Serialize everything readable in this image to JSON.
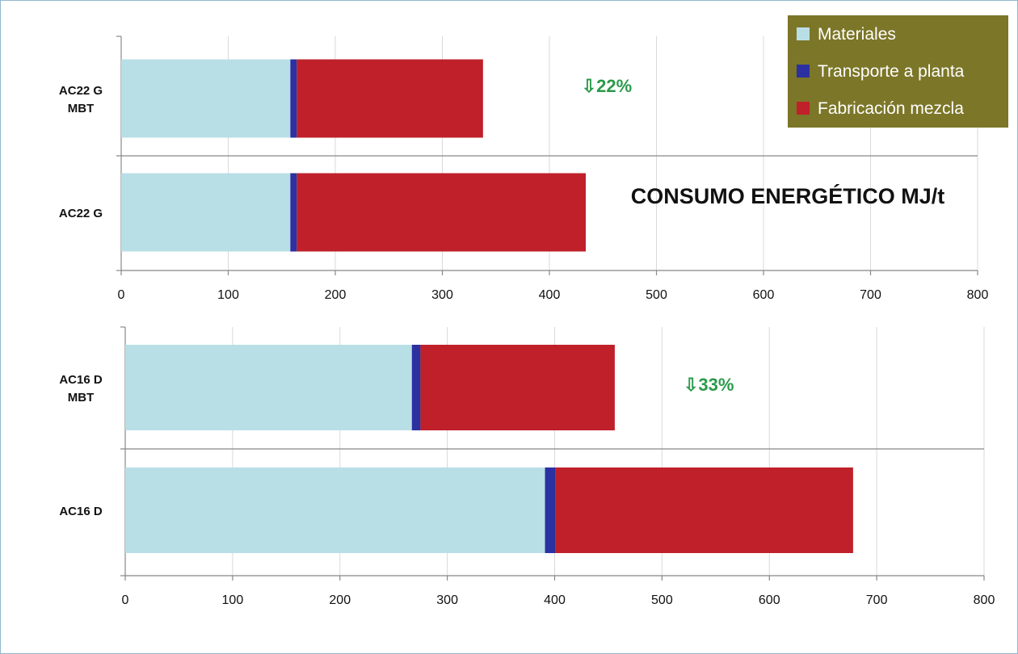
{
  "chart_data": [
    {
      "type": "bar",
      "orientation": "horizontal",
      "stacked": true,
      "categories": [
        "AC22 G MBT",
        "AC22 G"
      ],
      "category_lines": [
        [
          "AC22 G",
          "MBT"
        ],
        [
          "AC22 G"
        ]
      ],
      "series": [
        {
          "name": "Materiales",
          "values": [
            158,
            158
          ],
          "color": "#b9dfe6"
        },
        {
          "name": "Transporte a planta",
          "values": [
            6,
            6
          ],
          "color": "#2b31a0"
        },
        {
          "name": "Fabricación mezcla",
          "values": [
            174,
            270
          ],
          "color": "#c0202a"
        }
      ],
      "xlim": [
        0,
        800
      ],
      "xticks": [
        0,
        100,
        200,
        300,
        400,
        500,
        600,
        700,
        800
      ],
      "grid": "vertical",
      "title": "CONSUMO ENERGÉTICO MJ/t",
      "annotation": {
        "text": "⇩22%",
        "x": 430,
        "category": 0,
        "color": "#2c9a4b"
      }
    },
    {
      "type": "bar",
      "orientation": "horizontal",
      "stacked": true,
      "categories": [
        "AC16 D MBT",
        "AC16 D"
      ],
      "category_lines": [
        [
          "AC16 D",
          "MBT"
        ],
        [
          "AC16 D"
        ]
      ],
      "series": [
        {
          "name": "Materiales",
          "values": [
            267,
            391
          ],
          "color": "#b9dfe6"
        },
        {
          "name": "Transporte a planta",
          "values": [
            8,
            10
          ],
          "color": "#2b31a0"
        },
        {
          "name": "Fabricación mezcla",
          "values": [
            181,
            277
          ],
          "color": "#c0202a"
        }
      ],
      "xlim": [
        0,
        800
      ],
      "xticks": [
        0,
        100,
        200,
        300,
        400,
        500,
        600,
        700,
        800
      ],
      "grid": "vertical",
      "annotation": {
        "text": "⇩33%",
        "x": 520,
        "category": 0,
        "color": "#2c9a4b"
      }
    }
  ],
  "legend": {
    "placement": "top-right",
    "background": "#7c7628",
    "items": [
      {
        "label": "Materiales",
        "color": "#b9dfe6"
      },
      {
        "label": "Transporte a planta",
        "color": "#2b31a0"
      },
      {
        "label": "Fabricación mezcla",
        "color": "#c0202a"
      }
    ]
  }
}
